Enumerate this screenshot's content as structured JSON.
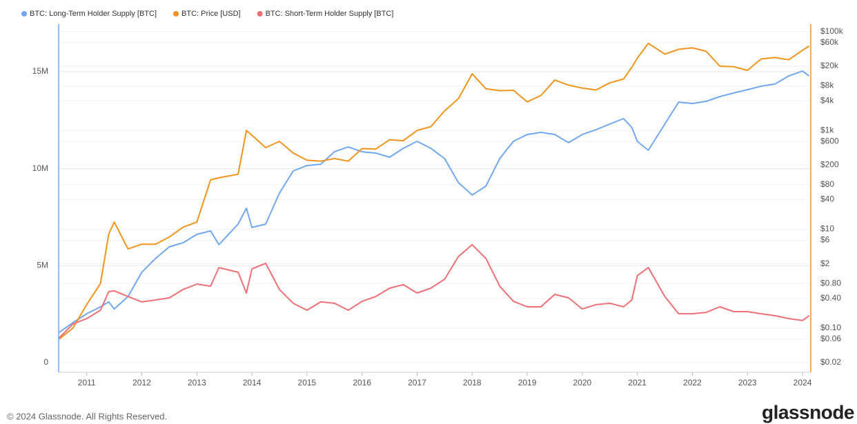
{
  "chart_data": {
    "type": "line",
    "x": [
      2010.5,
      2010.75,
      2011,
      2011.25,
      2011.4,
      2011.5,
      2011.75,
      2012,
      2012.25,
      2012.5,
      2012.75,
      2013,
      2013.25,
      2013.4,
      2013.75,
      2013.9,
      2014,
      2014.25,
      2014.5,
      2014.75,
      2015,
      2015.25,
      2015.5,
      2015.75,
      2016,
      2016.25,
      2016.5,
      2016.75,
      2017,
      2017.25,
      2017.5,
      2017.75,
      2018,
      2018.25,
      2018.5,
      2018.75,
      2019,
      2019.25,
      2019.5,
      2019.75,
      2020,
      2020.25,
      2020.5,
      2020.75,
      2020.9,
      2021,
      2021.2,
      2021.5,
      2021.75,
      2022,
      2022.25,
      2022.5,
      2022.75,
      2023,
      2023.25,
      2023.5,
      2023.75,
      2024,
      2024.12
    ],
    "xlim": [
      2010.49,
      2024.15
    ],
    "xticks": [
      2011,
      2012,
      2013,
      2014,
      2015,
      2016,
      2017,
      2018,
      2019,
      2020,
      2021,
      2022,
      2023,
      2024
    ],
    "ylim": [
      0,
      17450000
    ],
    "yticks": [
      0,
      {
        "value": 5000000,
        "label": "5M"
      },
      {
        "value": 10000000,
        "label": "10M"
      },
      {
        "value": 15000000,
        "label": "15M"
      }
    ],
    "y2lim": [
      0.02,
      142000
    ],
    "y2scale": "log",
    "y2ticks": [
      {
        "value": 100000,
        "label": "$100k"
      },
      {
        "value": 60000,
        "label": "$60k"
      },
      {
        "value": 20000,
        "label": "$20k"
      },
      {
        "value": 8000,
        "label": "$8k"
      },
      {
        "value": 4000,
        "label": "$4k"
      },
      {
        "value": 1000,
        "label": "$1k"
      },
      {
        "value": 600,
        "label": "$600"
      },
      {
        "value": 200,
        "label": "$200"
      },
      {
        "value": 80,
        "label": "$80"
      },
      {
        "value": 40,
        "label": "$40"
      },
      {
        "value": 10,
        "label": "$10"
      },
      {
        "value": 6,
        "label": "$6"
      },
      {
        "value": 2,
        "label": "$2"
      },
      {
        "value": 0.8,
        "label": "$0.80"
      },
      {
        "value": 0.4,
        "label": "$0.40"
      },
      {
        "value": 0.1,
        "label": "$0.10"
      },
      {
        "value": 0.06,
        "label": "$0.06"
      },
      {
        "value": 0.02,
        "label": "$0.02"
      }
    ],
    "grid": true,
    "legend": "top-left",
    "series": [
      {
        "name": "BTC: Long-Term Holder Supply [BTC]",
        "color": "#72a7f0",
        "axis": "y",
        "values": [
          1560000,
          2060000,
          2520000,
          2880000,
          3130000,
          2770000,
          3410000,
          4660000,
          5370000,
          5970000,
          6180000,
          6610000,
          6790000,
          6080000,
          7140000,
          7960000,
          6970000,
          7140000,
          8740000,
          9880000,
          10160000,
          10230000,
          10870000,
          11120000,
          10870000,
          10800000,
          10590000,
          11050000,
          11410000,
          11050000,
          10520000,
          9280000,
          8640000,
          9100000,
          10520000,
          11410000,
          11760000,
          11870000,
          11760000,
          11340000,
          11760000,
          12010000,
          12300000,
          12580000,
          12120000,
          11410000,
          10950000,
          12300000,
          13430000,
          13360000,
          13470000,
          13720000,
          13900000,
          14070000,
          14250000,
          14360000,
          14780000,
          15030000,
          14780000
        ]
      },
      {
        "name": "BTC: Price [USD]",
        "color": "#f2931c",
        "axis": "y2",
        "values": [
          0.06,
          0.1,
          0.3,
          0.8,
          8,
          14,
          4,
          5,
          5,
          7,
          11,
          14,
          100,
          110,
          130,
          1000,
          800,
          450,
          600,
          350,
          250,
          240,
          270,
          240,
          430,
          420,
          650,
          620,
          1000,
          1200,
          2500,
          4400,
          14000,
          7000,
          6400,
          6500,
          3800,
          5100,
          10500,
          8300,
          7200,
          6600,
          9200,
          11000,
          19000,
          29000,
          58000,
          35000,
          44000,
          47000,
          40000,
          20000,
          19500,
          16500,
          28000,
          30000,
          27000,
          42000,
          51000
        ]
      },
      {
        "name": "BTC: Short-Term Holder Supply [BTC]",
        "color": "#ef6f75",
        "axis": "y",
        "values": [
          1280000,
          1990000,
          2270000,
          2700000,
          3660000,
          3700000,
          3410000,
          3130000,
          3230000,
          3340000,
          3770000,
          4050000,
          3940000,
          4900000,
          4660000,
          3590000,
          4830000,
          5120000,
          3770000,
          3060000,
          2700000,
          3130000,
          3060000,
          2700000,
          3160000,
          3410000,
          3840000,
          4020000,
          3590000,
          3840000,
          4300000,
          5470000,
          6080000,
          5370000,
          3940000,
          3160000,
          2880000,
          2880000,
          3520000,
          3340000,
          2770000,
          2990000,
          3060000,
          2880000,
          3230000,
          4480000,
          4900000,
          3410000,
          2520000,
          2520000,
          2590000,
          2880000,
          2630000,
          2630000,
          2520000,
          2420000,
          2270000,
          2170000,
          2420000
        ]
      }
    ]
  },
  "footer": {
    "copyright": "© 2024 Glassnode. All Rights Reserved.",
    "logo": "glassnode"
  }
}
